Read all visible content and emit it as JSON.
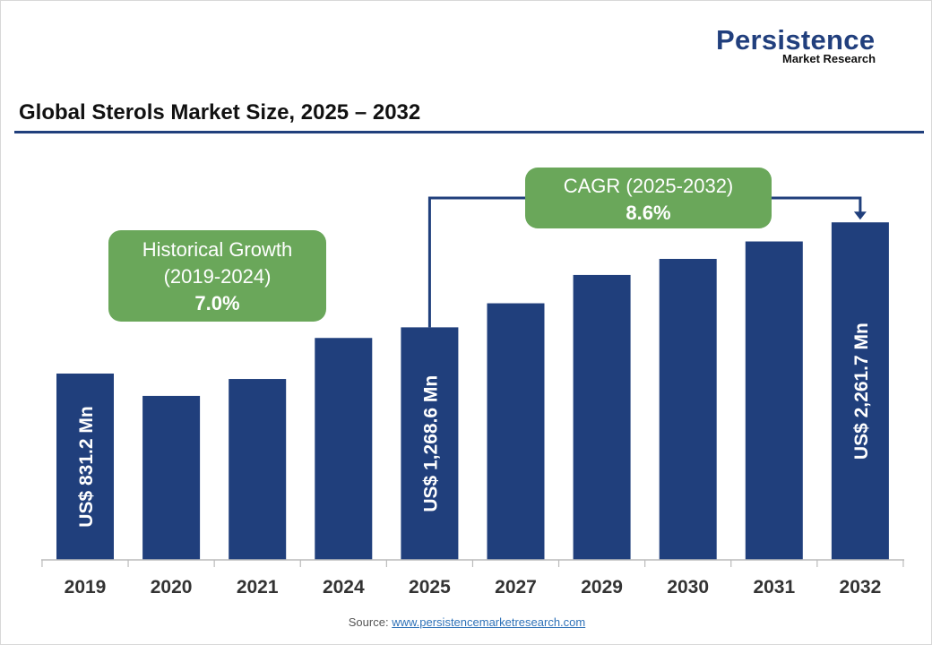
{
  "logo": {
    "line1": "Persistence",
    "line2": "Market Research"
  },
  "title": "Global Sterols Market Size, 2025 – 2032",
  "historical_box": {
    "line1": "Historical Growth",
    "line2": "(2019-2024)",
    "value": "7.0%"
  },
  "cagr_box": {
    "line1": "CAGR (2025-2032)",
    "value": "8.6%"
  },
  "source": {
    "label": "Source:",
    "link": "www.persistencemarketresearch.com"
  },
  "colors": {
    "bar": "#203f7c",
    "box": "#6aa75a",
    "rule": "#203f7c"
  },
  "chart_data": {
    "type": "bar",
    "title": "Global Sterols Market Size, 2025 – 2032",
    "categories": [
      "2019",
      "2020",
      "2021",
      "2024",
      "2025",
      "2027",
      "2029",
      "2030",
      "2031",
      "2032"
    ],
    "values": [
      831.2,
      620,
      780,
      1168,
      1268.6,
      1496,
      1764,
      1916,
      2081,
      2261.7
    ],
    "data_labels": {
      "2019": "US$ 831.2 Mn",
      "2025": "US$ 1,268.6 Mn",
      "2032": "US$ 2,261.7 Mn"
    },
    "xlabel": "",
    "ylabel": "",
    "grid": false,
    "legend": "none"
  }
}
